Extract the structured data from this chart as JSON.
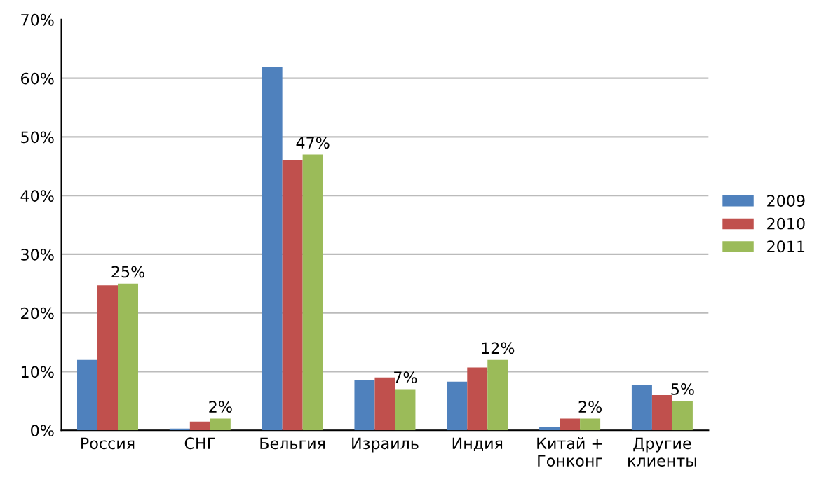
{
  "chart_data": {
    "type": "bar",
    "categories": [
      "Россия",
      "СНГ",
      "Бельгия",
      "Израиль",
      "Индия",
      "Китай +\nГонконг",
      "Другие\nклиенты"
    ],
    "series": [
      {
        "name": "2009",
        "color": "#4f81bd",
        "values": [
          12,
          0.3,
          62,
          8.5,
          8.3,
          0.6,
          7.7
        ]
      },
      {
        "name": "2010",
        "color": "#c0504d",
        "values": [
          24.7,
          1.5,
          46,
          9,
          10.7,
          2,
          6
        ]
      },
      {
        "name": "2011",
        "color": "#9bbb59",
        "values": [
          25,
          2,
          47,
          7,
          12,
          2,
          5
        ],
        "value_labels": [
          "25%",
          "2%",
          "47%",
          "7%",
          "12%",
          "2%",
          "5%"
        ]
      }
    ],
    "ylim": [
      0,
      70
    ],
    "yticks": [
      {
        "value": 0,
        "label": "0%"
      },
      {
        "value": 10,
        "label": "10%"
      },
      {
        "value": 20,
        "label": "20%"
      },
      {
        "value": 30,
        "label": "30%"
      },
      {
        "value": 40,
        "label": "40%"
      },
      {
        "value": 50,
        "label": "50%"
      },
      {
        "value": 60,
        "label": "60%"
      },
      {
        "value": 70,
        "label": "70%"
      }
    ],
    "grid": "y",
    "legend": "right"
  }
}
